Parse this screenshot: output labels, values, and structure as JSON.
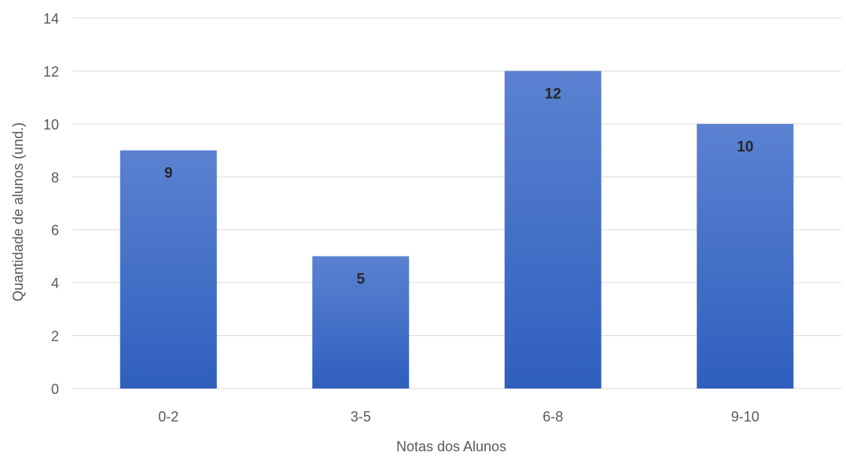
{
  "chart_data": {
    "type": "bar",
    "categories": [
      "0-2",
      "3-5",
      "6-8",
      "9-10"
    ],
    "values": [
      9,
      5,
      12,
      10
    ],
    "data_labels": [
      "9",
      "5",
      "12",
      "10"
    ],
    "title": "",
    "xlabel": "Notas dos Alunos",
    "ylabel": "Quantidade de alunos (und.)",
    "ylim": [
      0,
      14
    ],
    "yticks": [
      0,
      2,
      4,
      6,
      8,
      10,
      12,
      14
    ],
    "grid": true,
    "legend": "none",
    "colors": {
      "bar_top": "#5b82d1",
      "bar_bottom": "#2f5fbe",
      "grid": "#d9d9d9",
      "text": "#595959",
      "label": "#262626"
    }
  }
}
